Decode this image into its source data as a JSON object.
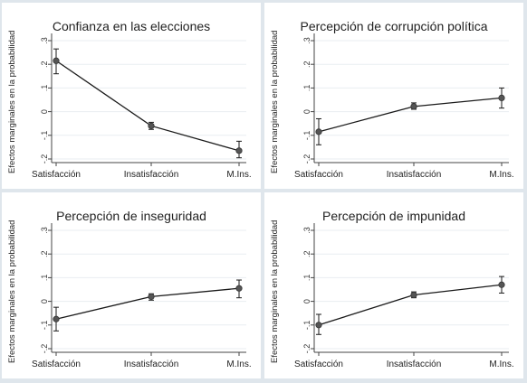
{
  "ylabel": "Efectos marginales en la probabilidad",
  "chart_data": [
    {
      "type": "line",
      "title": "Confianza en las elecciones",
      "xlabel": "",
      "ylabel": "Efectos marginales en la probabilidad",
      "categories": [
        "Satisfacción",
        "Insatisfacción",
        "M.Ins."
      ],
      "values": [
        0.215,
        -0.06,
        -0.165
      ],
      "ci_low": [
        0.16,
        -0.075,
        -0.195
      ],
      "ci_high": [
        0.265,
        -0.045,
        -0.125
      ],
      "ylim": [
        -0.2,
        0.3
      ],
      "yticks": [
        "-.2",
        "-.1",
        "0",
        ".1",
        ".2",
        ".3"
      ],
      "grid": true
    },
    {
      "type": "line",
      "title": "Percepción de corrupción política",
      "xlabel": "",
      "ylabel": "Efectos marginales en la probabilidad",
      "categories": [
        "Satisfacción",
        "Insatisfacción",
        "M.Ins."
      ],
      "values": [
        -0.085,
        0.022,
        0.058
      ],
      "ci_low": [
        -0.14,
        0.01,
        0.015
      ],
      "ci_high": [
        -0.03,
        0.037,
        0.1
      ],
      "ylim": [
        -0.2,
        0.3
      ],
      "yticks": [
        "-.2",
        "-.1",
        "0",
        ".1",
        ".2",
        ".3"
      ],
      "grid": true
    },
    {
      "type": "line",
      "title": "Percepción de inseguridad",
      "xlabel": "",
      "ylabel": "Efectos marginales en la probabilidad",
      "categories": [
        "Satisfacción",
        "Insatisfacción",
        "M.Ins."
      ],
      "values": [
        -0.075,
        0.02,
        0.055
      ],
      "ci_low": [
        -0.125,
        0.005,
        0.015
      ],
      "ci_high": [
        -0.025,
        0.032,
        0.09
      ],
      "ylim": [
        -0.2,
        0.3
      ],
      "yticks": [
        "-.2",
        "-.1",
        "0",
        ".1",
        ".2",
        ".3"
      ],
      "grid": true
    },
    {
      "type": "line",
      "title": "Percepción de impunidad",
      "xlabel": "",
      "ylabel": "Efectos marginales en la probabilidad",
      "categories": [
        "Satisfacción",
        "Insatisfacción",
        "M.Ins."
      ],
      "values": [
        -0.1,
        0.027,
        0.07
      ],
      "ci_low": [
        -0.14,
        0.015,
        0.035
      ],
      "ci_high": [
        -0.055,
        0.04,
        0.105
      ],
      "ylim": [
        -0.2,
        0.3
      ],
      "yticks": [
        "-.2",
        "-.1",
        "0",
        ".1",
        ".2",
        ".3"
      ],
      "grid": true
    }
  ],
  "colors": {
    "background": "#dfe6ec",
    "panel": "#ffffff",
    "line": "#1a1a1a",
    "marker": "#555555",
    "grid": "#e9edf1",
    "axis": "#444444"
  }
}
